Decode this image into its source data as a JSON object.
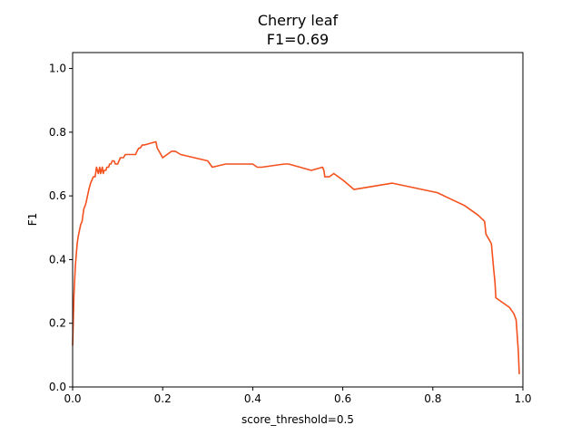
{
  "chart_data": {
    "type": "line",
    "title": "Cherry leaf",
    "subtitle": "F1=0.69",
    "xlabel": "score_threshold=0.5",
    "ylabel": "F1",
    "xlim": [
      0.0,
      1.0
    ],
    "ylim": [
      0.0,
      1.05
    ],
    "xticks": [
      "0.0",
      "0.2",
      "0.4",
      "0.6",
      "0.8",
      "1.0"
    ],
    "yticks": [
      "0.0",
      "0.2",
      "0.4",
      "0.6",
      "0.8",
      "1.0"
    ],
    "grid": false,
    "series": [
      {
        "color": "#f4511e",
        "x": [
          0.0,
          0.003,
          0.006,
          0.01,
          0.012,
          0.015,
          0.018,
          0.021,
          0.025,
          0.028,
          0.03,
          0.033,
          0.036,
          0.04,
          0.043,
          0.046,
          0.05,
          0.053,
          0.057,
          0.06,
          0.062,
          0.064,
          0.066,
          0.068,
          0.07,
          0.072,
          0.074,
          0.076,
          0.078,
          0.08,
          0.082,
          0.085,
          0.088,
          0.092,
          0.095,
          0.098,
          0.1,
          0.103,
          0.106,
          0.11,
          0.113,
          0.117,
          0.12,
          0.14,
          0.143,
          0.147,
          0.15,
          0.155,
          0.16,
          0.185,
          0.188,
          0.192,
          0.2,
          0.22,
          0.228,
          0.24,
          0.3,
          0.31,
          0.34,
          0.4,
          0.41,
          0.42,
          0.47,
          0.48,
          0.53,
          0.555,
          0.558,
          0.56,
          0.57,
          0.58,
          0.6,
          0.625,
          0.71,
          0.81,
          0.84,
          0.87,
          0.9,
          0.915,
          0.918,
          0.93,
          0.935,
          0.938,
          0.94,
          0.97,
          0.98,
          0.985,
          0.99,
          0.992
        ],
        "y": [
          0.13,
          0.29,
          0.38,
          0.45,
          0.47,
          0.49,
          0.51,
          0.52,
          0.56,
          0.57,
          0.58,
          0.6,
          0.62,
          0.64,
          0.65,
          0.66,
          0.66,
          0.69,
          0.67,
          0.69,
          0.67,
          0.68,
          0.69,
          0.67,
          0.68,
          0.68,
          0.68,
          0.69,
          0.69,
          0.69,
          0.7,
          0.7,
          0.71,
          0.71,
          0.7,
          0.7,
          0.7,
          0.71,
          0.72,
          0.72,
          0.72,
          0.73,
          0.73,
          0.73,
          0.74,
          0.75,
          0.75,
          0.76,
          0.76,
          0.77,
          0.75,
          0.74,
          0.72,
          0.74,
          0.74,
          0.73,
          0.71,
          0.69,
          0.7,
          0.7,
          0.69,
          0.69,
          0.7,
          0.7,
          0.68,
          0.69,
          0.68,
          0.66,
          0.66,
          0.67,
          0.65,
          0.62,
          0.64,
          0.61,
          0.59,
          0.57,
          0.54,
          0.52,
          0.48,
          0.45,
          0.37,
          0.33,
          0.28,
          0.25,
          0.23,
          0.21,
          0.11,
          0.04
        ]
      }
    ]
  }
}
